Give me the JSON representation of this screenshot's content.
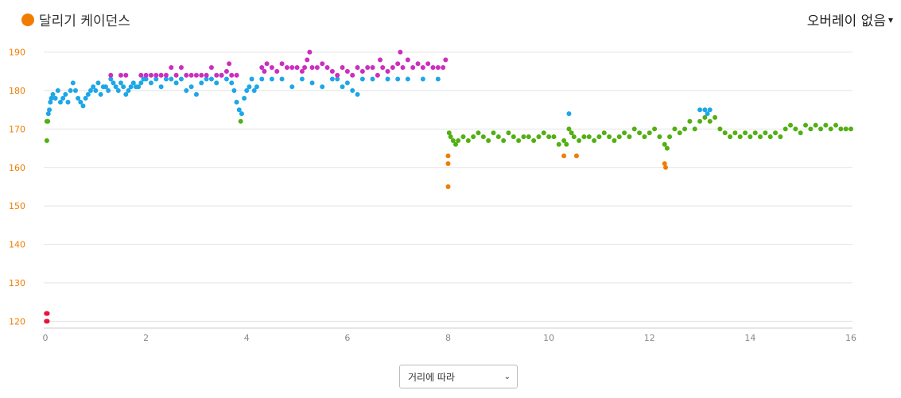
{
  "header": {
    "title": "달리기 케이던스",
    "title_dot_color": "#f07d00",
    "overlay_label": "오버레이 없음",
    "overlay_caret": "▾"
  },
  "footer": {
    "select_value": "거리에 따라",
    "select_caret": "⌄"
  },
  "colors": {
    "tick": "#f07d00",
    "grid": "#e2e2e2",
    "xtick": "#888888"
  },
  "chart_data": {
    "type": "scatter",
    "xlim": [
      0,
      16
    ],
    "ylim": [
      118,
      192
    ],
    "xticks": [
      0,
      2,
      4,
      6,
      8,
      10,
      12,
      14,
      16
    ],
    "yticks": [
      120,
      130,
      140,
      150,
      160,
      170,
      180,
      190
    ],
    "grid": true,
    "series": [
      {
        "color": "#e8143c",
        "points": [
          [
            0.02,
            122
          ],
          [
            0.02,
            120
          ],
          [
            0.04,
            122
          ],
          [
            0.04,
            120
          ]
        ]
      },
      {
        "color": "#52b012",
        "points": [
          [
            0.03,
            172
          ],
          [
            0.03,
            167
          ],
          [
            0.05,
            172
          ],
          [
            3.88,
            172
          ]
        ]
      },
      {
        "color": "#1ea7e8",
        "points": [
          [
            0.06,
            174
          ],
          [
            0.08,
            175
          ],
          [
            0.1,
            177
          ],
          [
            0.12,
            178
          ],
          [
            0.15,
            179
          ],
          [
            0.2,
            178
          ],
          [
            0.25,
            180
          ],
          [
            0.3,
            177
          ],
          [
            0.35,
            178
          ],
          [
            0.4,
            179
          ],
          [
            0.45,
            177
          ],
          [
            0.5,
            180
          ],
          [
            0.55,
            182
          ],
          [
            0.6,
            180
          ],
          [
            0.65,
            178
          ],
          [
            0.7,
            177
          ],
          [
            0.75,
            176
          ],
          [
            0.8,
            178
          ],
          [
            0.85,
            179
          ],
          [
            0.9,
            180
          ],
          [
            0.95,
            181
          ],
          [
            1.0,
            180
          ],
          [
            1.05,
            182
          ],
          [
            1.1,
            179
          ],
          [
            1.15,
            181
          ],
          [
            1.2,
            181
          ],
          [
            1.25,
            180
          ],
          [
            1.3,
            183
          ],
          [
            1.35,
            182
          ],
          [
            1.4,
            181
          ],
          [
            1.45,
            180
          ],
          [
            1.5,
            182
          ],
          [
            1.55,
            181
          ],
          [
            1.6,
            179
          ],
          [
            1.65,
            180
          ],
          [
            1.7,
            181
          ],
          [
            1.75,
            182
          ],
          [
            1.8,
            181
          ],
          [
            1.85,
            181
          ],
          [
            1.9,
            182
          ],
          [
            1.95,
            183
          ],
          [
            2.0,
            183
          ],
          [
            2.1,
            182
          ],
          [
            2.2,
            183
          ],
          [
            2.3,
            181
          ],
          [
            2.4,
            183
          ],
          [
            2.5,
            183
          ],
          [
            2.6,
            182
          ],
          [
            2.7,
            183
          ],
          [
            2.8,
            180
          ],
          [
            2.9,
            181
          ],
          [
            3.0,
            179
          ],
          [
            3.1,
            182
          ],
          [
            3.2,
            183
          ],
          [
            3.3,
            183
          ],
          [
            3.4,
            182
          ],
          [
            3.5,
            184
          ],
          [
            3.6,
            183
          ],
          [
            3.7,
            182
          ],
          [
            3.75,
            180
          ],
          [
            3.8,
            177
          ],
          [
            3.85,
            175
          ],
          [
            3.9,
            174
          ],
          [
            3.95,
            178
          ],
          [
            4.0,
            180
          ],
          [
            4.05,
            181
          ],
          [
            4.1,
            183
          ],
          [
            4.15,
            180
          ],
          [
            4.2,
            181
          ],
          [
            4.3,
            183
          ],
          [
            4.5,
            183
          ],
          [
            4.7,
            183
          ],
          [
            4.9,
            181
          ],
          [
            5.1,
            183
          ],
          [
            5.3,
            182
          ],
          [
            5.5,
            181
          ],
          [
            5.7,
            183
          ],
          [
            5.8,
            183
          ],
          [
            5.9,
            181
          ],
          [
            6.0,
            182
          ],
          [
            6.1,
            180
          ],
          [
            6.2,
            179
          ],
          [
            6.3,
            183
          ],
          [
            6.5,
            183
          ],
          [
            6.8,
            183
          ],
          [
            7.0,
            183
          ],
          [
            7.2,
            183
          ],
          [
            7.5,
            183
          ],
          [
            7.8,
            183
          ]
        ]
      },
      {
        "color": "#cc2ec0",
        "points": [
          [
            1.3,
            184
          ],
          [
            1.5,
            184
          ],
          [
            1.6,
            184
          ],
          [
            1.9,
            184
          ],
          [
            2.0,
            184
          ],
          [
            2.1,
            184
          ],
          [
            2.2,
            184
          ],
          [
            2.3,
            184
          ],
          [
            2.4,
            184
          ],
          [
            2.5,
            186
          ],
          [
            2.6,
            184
          ],
          [
            2.7,
            186
          ],
          [
            2.8,
            184
          ],
          [
            2.9,
            184
          ],
          [
            3.0,
            184
          ],
          [
            3.1,
            184
          ],
          [
            3.2,
            184
          ],
          [
            3.3,
            186
          ],
          [
            3.4,
            184
          ],
          [
            3.5,
            184
          ],
          [
            3.6,
            185
          ],
          [
            3.65,
            187
          ],
          [
            3.7,
            184
          ],
          [
            3.8,
            184
          ],
          [
            4.3,
            186
          ],
          [
            4.35,
            185
          ],
          [
            4.4,
            187
          ],
          [
            4.5,
            186
          ],
          [
            4.6,
            185
          ],
          [
            4.7,
            187
          ],
          [
            4.8,
            186
          ],
          [
            4.9,
            186
          ],
          [
            5.0,
            186
          ],
          [
            5.1,
            185
          ],
          [
            5.15,
            186
          ],
          [
            5.2,
            188
          ],
          [
            5.25,
            190
          ],
          [
            5.3,
            186
          ],
          [
            5.4,
            186
          ],
          [
            5.5,
            187
          ],
          [
            5.6,
            186
          ],
          [
            5.7,
            185
          ],
          [
            5.8,
            184
          ],
          [
            5.9,
            186
          ],
          [
            6.0,
            185
          ],
          [
            6.1,
            184
          ],
          [
            6.2,
            186
          ],
          [
            6.3,
            185
          ],
          [
            6.4,
            186
          ],
          [
            6.5,
            186
          ],
          [
            6.6,
            184
          ],
          [
            6.65,
            188
          ],
          [
            6.7,
            186
          ],
          [
            6.8,
            185
          ],
          [
            6.9,
            186
          ],
          [
            7.0,
            187
          ],
          [
            7.05,
            190
          ],
          [
            7.1,
            186
          ],
          [
            7.2,
            188
          ],
          [
            7.3,
            186
          ],
          [
            7.4,
            187
          ],
          [
            7.5,
            186
          ],
          [
            7.6,
            187
          ],
          [
            7.7,
            186
          ],
          [
            7.8,
            186
          ],
          [
            7.9,
            186
          ],
          [
            7.95,
            188
          ]
        ]
      },
      {
        "color": "#52b012",
        "points": [
          [
            8.02,
            169
          ],
          [
            8.05,
            168
          ],
          [
            8.1,
            167
          ],
          [
            8.15,
            166
          ],
          [
            8.2,
            167
          ],
          [
            8.3,
            168
          ],
          [
            8.4,
            167
          ],
          [
            8.5,
            168
          ],
          [
            8.6,
            169
          ],
          [
            8.7,
            168
          ],
          [
            8.8,
            167
          ],
          [
            8.9,
            169
          ],
          [
            9.0,
            168
          ],
          [
            9.1,
            167
          ],
          [
            9.2,
            169
          ],
          [
            9.3,
            168
          ],
          [
            9.4,
            167
          ],
          [
            9.5,
            168
          ],
          [
            9.6,
            168
          ],
          [
            9.7,
            167
          ],
          [
            9.8,
            168
          ],
          [
            9.9,
            169
          ],
          [
            10.0,
            168
          ],
          [
            10.1,
            168
          ],
          [
            10.2,
            166
          ],
          [
            10.3,
            167
          ],
          [
            10.35,
            166
          ],
          [
            10.4,
            170
          ],
          [
            10.45,
            169
          ],
          [
            10.5,
            168
          ],
          [
            10.6,
            167
          ],
          [
            10.7,
            168
          ],
          [
            10.8,
            168
          ],
          [
            10.9,
            167
          ],
          [
            11.0,
            168
          ],
          [
            11.1,
            169
          ],
          [
            11.2,
            168
          ],
          [
            11.3,
            167
          ],
          [
            11.4,
            168
          ],
          [
            11.5,
            169
          ],
          [
            11.6,
            168
          ],
          [
            11.7,
            170
          ],
          [
            11.8,
            169
          ],
          [
            11.9,
            168
          ],
          [
            12.0,
            169
          ],
          [
            12.1,
            170
          ],
          [
            12.2,
            168
          ],
          [
            12.3,
            166
          ],
          [
            12.35,
            165
          ],
          [
            12.4,
            168
          ],
          [
            12.5,
            170
          ],
          [
            12.6,
            169
          ],
          [
            12.7,
            170
          ],
          [
            12.8,
            172
          ],
          [
            12.9,
            170
          ],
          [
            13.0,
            172
          ],
          [
            13.1,
            173
          ],
          [
            13.2,
            172
          ],
          [
            13.3,
            173
          ],
          [
            13.4,
            170
          ],
          [
            13.5,
            169
          ],
          [
            13.6,
            168
          ],
          [
            13.7,
            169
          ],
          [
            13.8,
            168
          ],
          [
            13.9,
            169
          ],
          [
            14.0,
            168
          ],
          [
            14.1,
            169
          ],
          [
            14.2,
            168
          ],
          [
            14.3,
            169
          ],
          [
            14.4,
            168
          ],
          [
            14.5,
            169
          ],
          [
            14.6,
            168
          ],
          [
            14.7,
            170
          ],
          [
            14.8,
            171
          ],
          [
            14.9,
            170
          ],
          [
            15.0,
            169
          ],
          [
            15.1,
            171
          ],
          [
            15.2,
            170
          ],
          [
            15.3,
            171
          ],
          [
            15.4,
            170
          ],
          [
            15.5,
            171
          ],
          [
            15.6,
            170
          ],
          [
            15.7,
            171
          ],
          [
            15.8,
            170
          ],
          [
            15.9,
            170
          ],
          [
            16.0,
            170
          ]
        ]
      },
      {
        "color": "#1ea7e8",
        "points": [
          [
            10.4,
            174
          ],
          [
            13.0,
            175
          ],
          [
            13.1,
            175
          ],
          [
            13.15,
            174
          ],
          [
            13.2,
            175
          ]
        ]
      },
      {
        "color": "#f07d00",
        "points": [
          [
            8.0,
            163
          ],
          [
            8.0,
            161
          ],
          [
            8.0,
            155
          ],
          [
            10.3,
            163
          ],
          [
            10.55,
            163
          ],
          [
            12.3,
            161
          ],
          [
            12.32,
            160
          ]
        ]
      }
    ]
  }
}
